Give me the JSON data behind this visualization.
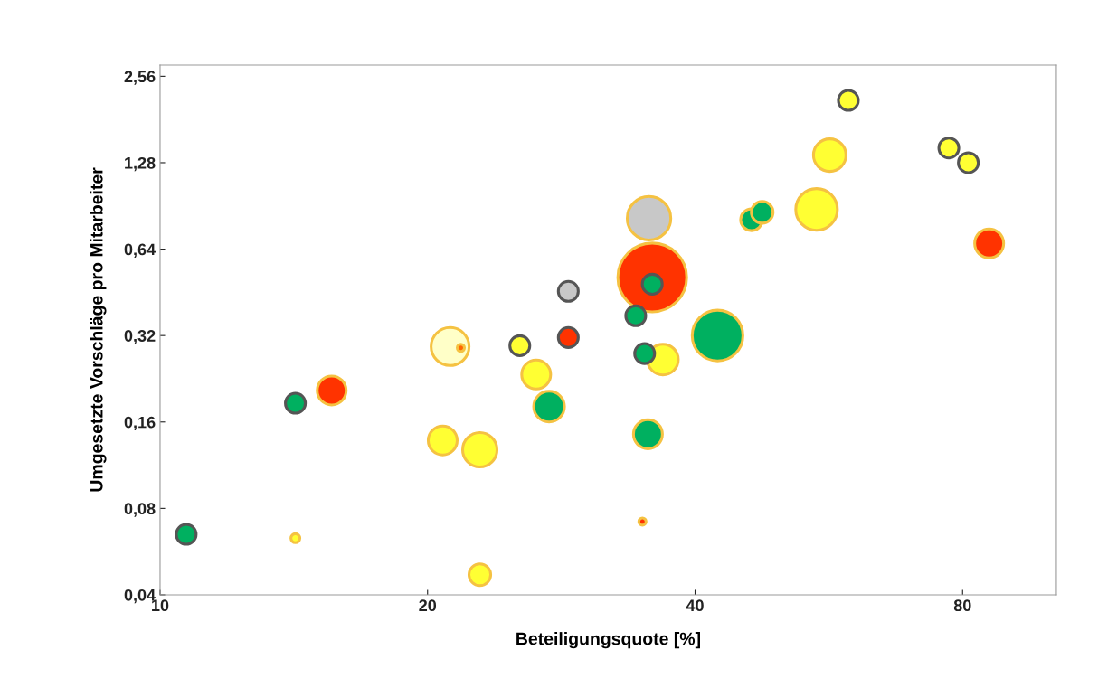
{
  "chart_data": {
    "type": "bubble",
    "xlabel": "Beteiligungsquote [%]",
    "ylabel": "Umgesetzte Vorschläge pro Mitarbeiter",
    "log": "xy",
    "grid": false,
    "legend": false,
    "xlim": [
      10,
      102
    ],
    "xticks": [
      10,
      20,
      40,
      80
    ],
    "ylim": [
      0.04,
      2.8
    ],
    "yticks": [
      {
        "value": 0.04,
        "label": "0,04"
      },
      {
        "value": 0.08,
        "label": "0,08"
      },
      {
        "value": 0.16,
        "label": "0,16"
      },
      {
        "value": 0.32,
        "label": "0,32"
      },
      {
        "value": 0.64,
        "label": "0,64"
      },
      {
        "value": 1.28,
        "label": "1,28"
      },
      {
        "value": 2.56,
        "label": "2,56"
      }
    ],
    "series": [
      {
        "color": "#f5c242",
        "x": [
          14.2,
          15.6,
          21.2,
          21.8,
          20.8,
          22.9,
          26.5,
          27.4,
          22.9,
          36.8,
          35.5,
          35.8,
          35.4,
          34.9,
          42.4,
          46.3,
          47.6,
          54.8,
          56.7,
          85.7
        ],
        "values": [
          0.063,
          0.206,
          0.293,
          0.29,
          0.138,
          0.128,
          0.234,
          0.181,
          0.047,
          0.264,
          0.82,
          0.51,
          0.145,
          0.072,
          0.32,
          0.81,
          0.86,
          0.88,
          1.36,
          0.67
        ],
        "sizes": [
          0.017,
          0.177,
          0.305,
          0.011,
          0.177,
          0.25,
          0.177,
          0.2,
          0.1,
          0.2,
          0.4,
          1,
          0.177,
          0.011,
          0.543,
          0.1,
          0.1,
          0.366,
          0.224,
          0.177
        ],
        "colors": [
          "#ffff33",
          "#ff3300",
          "#ffffc8",
          "#ff6600",
          "#ffff33",
          "#ffff33",
          "#ffff33",
          "#00b060",
          "#ffff33",
          "#ffff33",
          "#c8c8c8",
          "#ff3300",
          "#00b060",
          "#ff3300",
          "#00b060",
          "#00b060",
          "#00b060",
          "#ffff33",
          "#ffff33",
          "#ff3300"
        ]
      },
      {
        "color": "#555555",
        "x": [
          10.7,
          14.2,
          25.4,
          28.8,
          28.8,
          34.3,
          35.1,
          35.8,
          59.5,
          77.2,
          81.2
        ],
        "values": [
          0.065,
          0.186,
          0.295,
          0.456,
          0.315,
          0.375,
          0.277,
          0.483,
          2.11,
          1.44,
          1.28
        ],
        "sizes": [
          0.084,
          0.084,
          0.084,
          0.084,
          0.084,
          0.084,
          0.084,
          0.084,
          0.084,
          0.084,
          0.084
        ],
        "colors": [
          "#00b060",
          "#00b060",
          "#ffff33",
          "#c8c8c8",
          "#ff3300",
          "#00b060",
          "#00b060",
          "#00b060",
          "#ffff33",
          "#ffff33",
          "#ffff33"
        ]
      }
    ]
  }
}
